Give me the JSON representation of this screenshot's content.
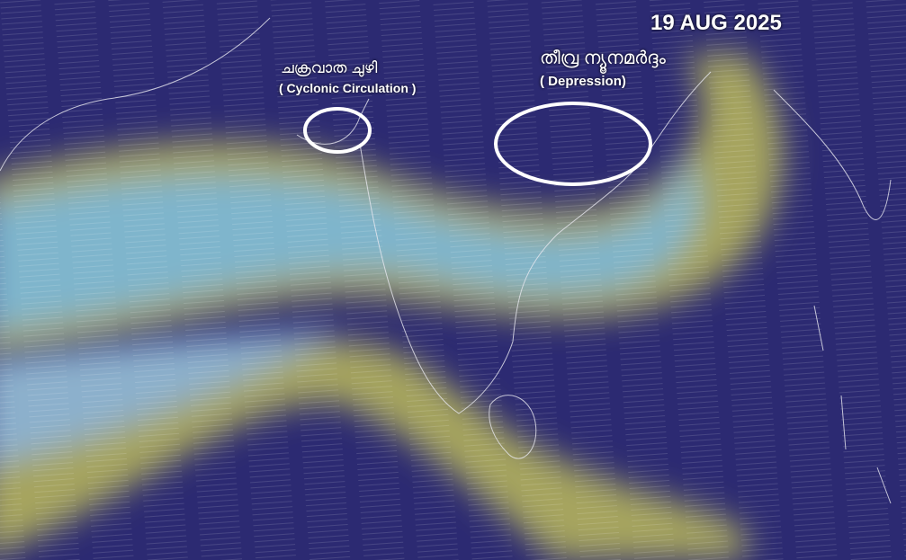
{
  "date": "19 AUG 2025",
  "annotations": [
    {
      "label_ml": "ചക്രവാത ചുഴി",
      "label_en": "( Cyclonic Circulation )",
      "marker": "ellipse"
    },
    {
      "label_ml": "തീവ്ര ന്യൂനമർദ്ദം",
      "label_en": "( Depression)",
      "marker": "ellipse"
    }
  ],
  "colors": {
    "background": "#2c2a72",
    "strong_wind": "#8fc6d8",
    "moderate_wind": "#a8a860",
    "coastline": "#e8e8f0",
    "marker": "#ffffff"
  }
}
